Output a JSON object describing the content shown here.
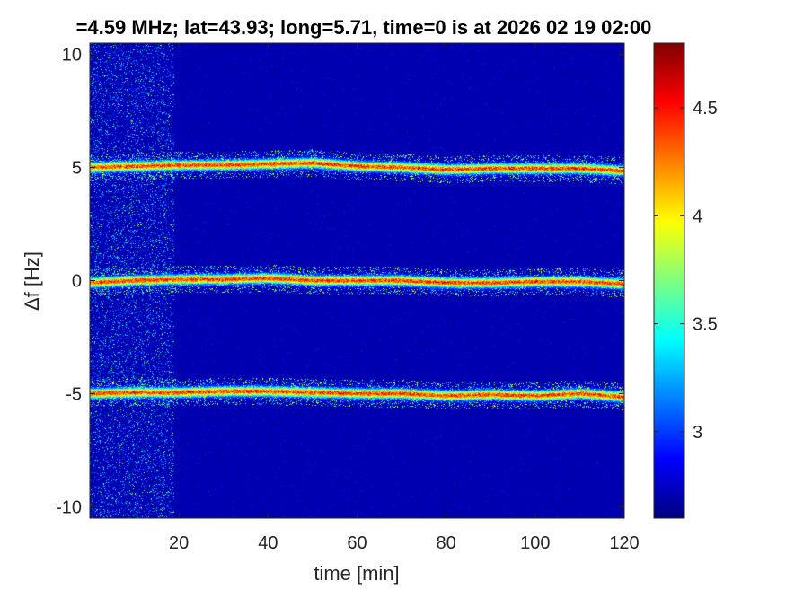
{
  "chart_data": {
    "type": "heatmap",
    "title": "=4.59 MHz;  lat=43.93; long=5.71, time=0 is at 2026 02 19 02:00",
    "xlabel": "time [min]",
    "ylabel": "Δf [Hz]",
    "xlim": [
      0,
      120
    ],
    "ylim": [
      -10.5,
      10.5
    ],
    "xticks": [
      20,
      40,
      60,
      80,
      100,
      120
    ],
    "yticks": [
      -10,
      -5,
      0,
      5,
      10
    ],
    "colorbar": {
      "range": [
        2.6,
        4.8
      ],
      "ticks": [
        3,
        3.5,
        4,
        4.5
      ],
      "colormap": "jet"
    },
    "background_level": 2.7,
    "noisy_region_end_min": 19,
    "traces": [
      {
        "center_hz": 5,
        "start_min": 0,
        "end_min": 120,
        "peak": 4.7,
        "offset": [
          [
            0,
            0
          ],
          [
            10,
            0.05
          ],
          [
            20,
            0.1
          ],
          [
            30,
            0.1
          ],
          [
            40,
            0.15
          ],
          [
            50,
            0.2
          ],
          [
            60,
            0.05
          ],
          [
            70,
            0
          ],
          [
            80,
            -0.1
          ],
          [
            90,
            -0.05
          ],
          [
            100,
            -0.05
          ],
          [
            110,
            -0.05
          ],
          [
            120,
            -0.15
          ]
        ]
      },
      {
        "center_hz": 0,
        "start_min": 0,
        "end_min": 120,
        "peak": 4.7,
        "offset": [
          [
            0,
            -0.1
          ],
          [
            10,
            0
          ],
          [
            20,
            0.05
          ],
          [
            30,
            0.05
          ],
          [
            40,
            0.1
          ],
          [
            50,
            0
          ],
          [
            60,
            0
          ],
          [
            70,
            0
          ],
          [
            80,
            -0.1
          ],
          [
            90,
            -0.1
          ],
          [
            100,
            -0.05
          ],
          [
            110,
            -0.05
          ],
          [
            120,
            -0.15
          ]
        ]
      },
      {
        "center_hz": -5,
        "start_min": 0,
        "end_min": 120,
        "peak": 4.7,
        "offset": [
          [
            0,
            0
          ],
          [
            10,
            0.05
          ],
          [
            20,
            0.05
          ],
          [
            30,
            0.1
          ],
          [
            40,
            0.1
          ],
          [
            50,
            0.05
          ],
          [
            60,
            0
          ],
          [
            70,
            0
          ],
          [
            80,
            -0.1
          ],
          [
            90,
            -0.05
          ],
          [
            100,
            -0.1
          ],
          [
            110,
            0
          ],
          [
            120,
            -0.15
          ]
        ]
      }
    ]
  }
}
